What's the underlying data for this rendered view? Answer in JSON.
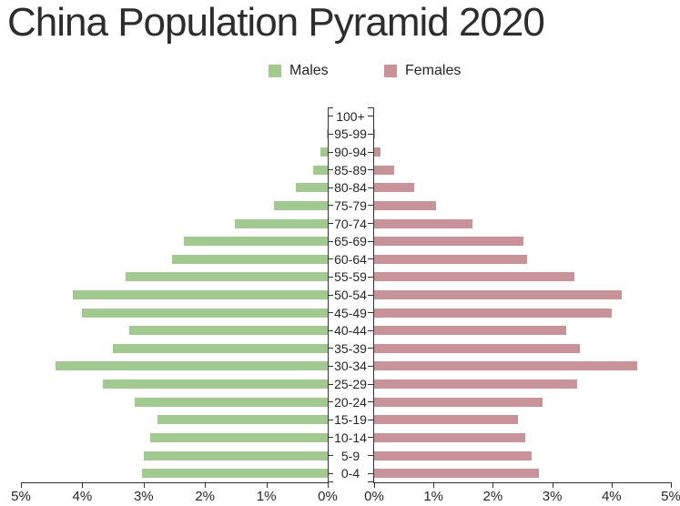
{
  "title": "China Population Pyramid 2020",
  "colors": {
    "background": "#ffffff",
    "axis": "#333333",
    "text": "#262626",
    "title_text": "#2d2d2d",
    "males": "#A2C98F",
    "females": "#C79298"
  },
  "legend": {
    "males_label": "Males",
    "females_label": "Females"
  },
  "chart_data": {
    "type": "bar",
    "subtype": "population-pyramid",
    "title": "China Population Pyramid 2020",
    "value_unit": "%",
    "legend_position": "top-center",
    "age_groups": [
      "100+",
      "95-99",
      "90-94",
      "85-89",
      "80-84",
      "75-79",
      "70-74",
      "65-69",
      "60-64",
      "55-59",
      "50-54",
      "45-49",
      "40-44",
      "35-39",
      "30-34",
      "25-29",
      "20-24",
      "15-19",
      "10-14",
      "5-9",
      "0-4"
    ],
    "series": [
      {
        "name": "Males",
        "side": "left",
        "color": "#A2C98F",
        "values": [
          0,
          0.01,
          0.12,
          0.24,
          0.52,
          0.88,
          1.51,
          2.35,
          2.53,
          3.3,
          4.16,
          4.0,
          3.24,
          3.5,
          4.44,
          3.67,
          3.15,
          2.78,
          2.9,
          2.99,
          3.03
        ]
      },
      {
        "name": "Females",
        "side": "right",
        "color": "#C79298",
        "values": [
          0,
          0.01,
          0.1,
          0.33,
          0.68,
          1.04,
          1.65,
          2.51,
          2.57,
          3.38,
          4.17,
          4.0,
          3.24,
          3.47,
          4.43,
          3.42,
          2.83,
          2.43,
          2.54,
          2.65,
          2.77
        ]
      }
    ],
    "x_axis": {
      "max_percent": 5,
      "tick_step_percent": 1,
      "tick_labels_left": [
        "5%",
        "4%",
        "3%",
        "2%",
        "1%",
        "0%"
      ],
      "tick_labels_right": [
        "0%",
        "1%",
        "2%",
        "3%",
        "4%",
        "5%"
      ]
    }
  }
}
